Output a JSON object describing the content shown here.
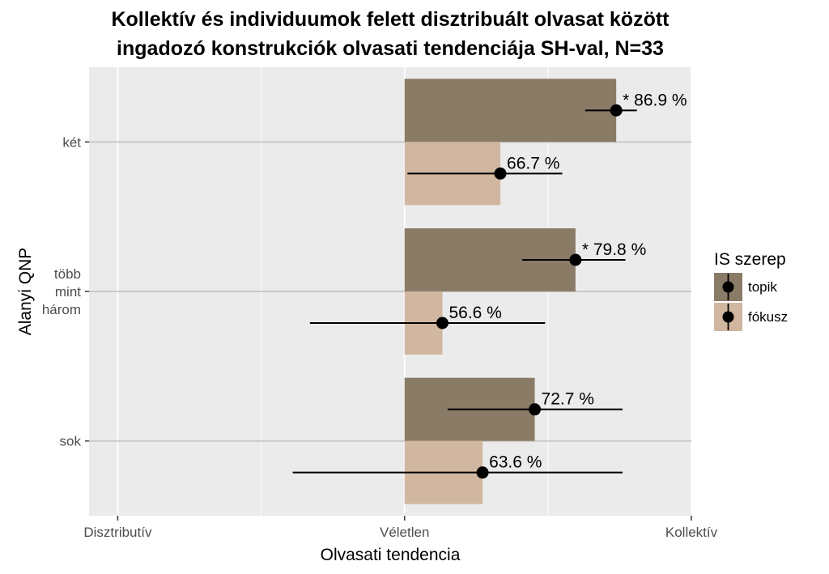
{
  "chart_data": {
    "type": "bar",
    "orientation": "horizontal",
    "title": [
      "Kollektív és individuumok felett disztribuált olvasat között",
      "ingadozó konstrukciók olvasati tendenciája SH-val, N=33"
    ],
    "xlabel": "Olvasati tendencia",
    "ylabel": "Alanyi QNP",
    "x_ticks": [
      "Disztributív",
      "Véletlen",
      "Kollektív"
    ],
    "xlim": [
      -0.05,
      1.0
    ],
    "categories": [
      {
        "key": "ket",
        "lines": [
          "két"
        ]
      },
      {
        "key": "tobb_mint_harom",
        "lines": [
          "több",
          "mint",
          "három"
        ]
      },
      {
        "key": "sok",
        "lines": [
          "sok"
        ]
      }
    ],
    "legend": {
      "title": "IS szerep",
      "position": "right"
    },
    "series": [
      {
        "name": "topik",
        "color": "#8a7b67",
        "values": [
          86.9,
          79.8,
          72.7
        ],
        "ci_low": [
          81.5,
          70.5,
          57.5
        ],
        "ci_high": [
          90.5,
          88.5,
          88.0
        ],
        "labels": [
          "* 86.9 %",
          "* 79.8 %",
          "72.7 %"
        ]
      },
      {
        "name": "fókusz",
        "color": "#d1b79f",
        "values": [
          66.7,
          56.6,
          63.6
        ],
        "ci_low": [
          50.5,
          33.5,
          30.5
        ],
        "ci_high": [
          77.5,
          74.5,
          88.0
        ],
        "labels": [
          "66.7 %",
          "56.6 %",
          "63.6 %"
        ]
      }
    ],
    "grid": true
  }
}
